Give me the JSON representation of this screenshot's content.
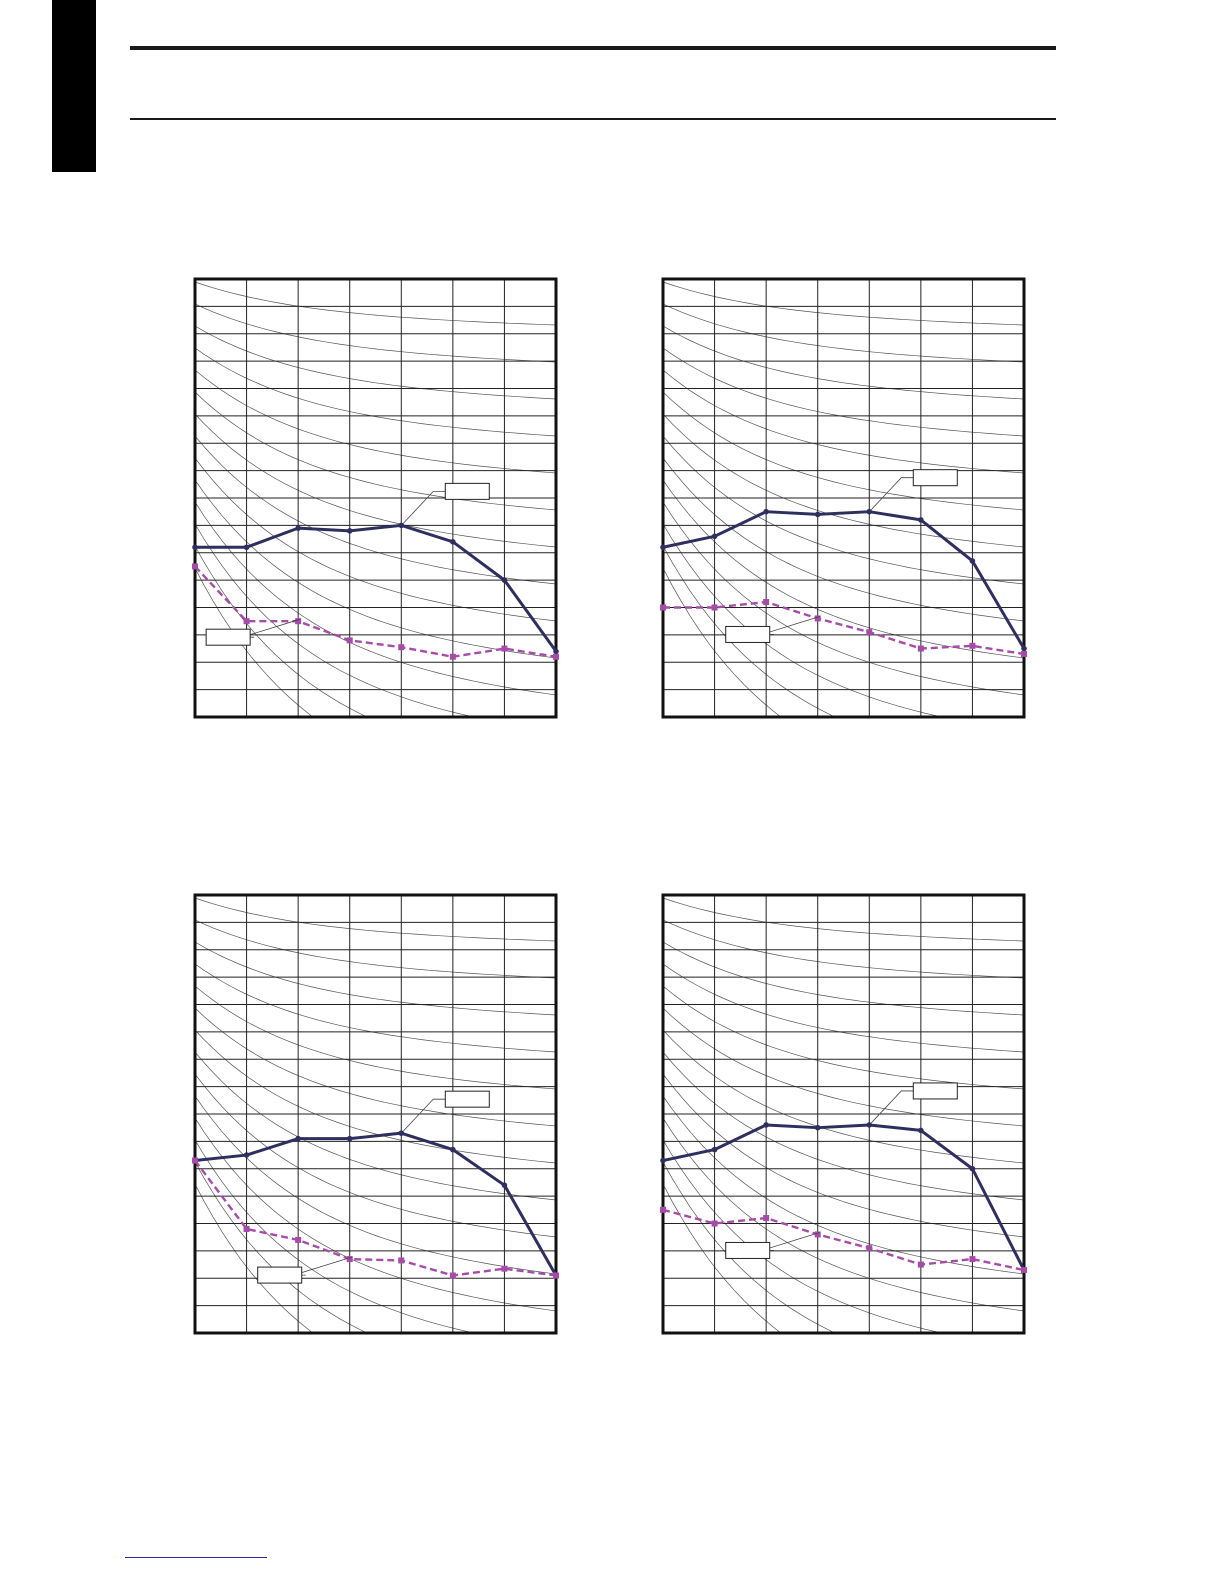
{
  "colors": {
    "series_a": "#2f2f5f",
    "series_b": "#a64ca8",
    "grid": "#222222",
    "background_curves": "#555555"
  },
  "chart_data": [
    {
      "type": "line",
      "x": [
        0,
        1,
        2,
        3,
        4,
        5,
        6,
        7
      ],
      "xlim": [
        0,
        7
      ],
      "ylim": [
        0,
        16
      ],
      "grid": true,
      "series": [
        {
          "line": "solid",
          "marker": "circle",
          "values": [
            6.2,
            6.2,
            6.9,
            6.8,
            7.0,
            6.4,
            5.0,
            2.4
          ]
        },
        {
          "line": "dashed",
          "marker": "square",
          "values": [
            5.5,
            3.5,
            3.5,
            2.8,
            2.55,
            2.2,
            2.5,
            2.2
          ]
        }
      ],
      "annotations": [
        {
          "text": "",
          "series": 0,
          "point": 4
        },
        {
          "text": "",
          "series": 1,
          "point": 2
        }
      ]
    },
    {
      "type": "line",
      "x": [
        0,
        1,
        2,
        3,
        4,
        5,
        6,
        7
      ],
      "xlim": [
        0,
        7
      ],
      "ylim": [
        0,
        16
      ],
      "grid": true,
      "series": [
        {
          "line": "solid",
          "marker": "circle",
          "values": [
            6.2,
            6.6,
            7.5,
            7.4,
            7.5,
            7.2,
            5.7,
            2.5
          ]
        },
        {
          "line": "dashed",
          "marker": "square",
          "values": [
            4.0,
            4.0,
            4.2,
            3.6,
            3.1,
            2.5,
            2.6,
            2.3
          ]
        }
      ],
      "annotations": [
        {
          "text": "",
          "series": 0,
          "point": 4
        },
        {
          "text": "",
          "series": 1,
          "point": 3
        }
      ]
    },
    {
      "type": "line",
      "x": [
        0,
        1,
        2,
        3,
        4,
        5,
        6,
        7
      ],
      "xlim": [
        0,
        7
      ],
      "ylim": [
        0,
        16
      ],
      "grid": true,
      "series": [
        {
          "line": "solid",
          "marker": "circle",
          "values": [
            6.3,
            6.5,
            7.1,
            7.1,
            7.3,
            6.7,
            5.4,
            2.1
          ]
        },
        {
          "line": "dashed",
          "marker": "square",
          "values": [
            6.3,
            3.8,
            3.4,
            2.7,
            2.65,
            2.1,
            2.35,
            2.1
          ]
        }
      ],
      "annotations": [
        {
          "text": "",
          "series": 0,
          "point": 4
        },
        {
          "text": "",
          "series": 1,
          "point": 3
        }
      ]
    },
    {
      "type": "line",
      "x": [
        0,
        1,
        2,
        3,
        4,
        5,
        6,
        7
      ],
      "xlim": [
        0,
        7
      ],
      "ylim": [
        0,
        16
      ],
      "grid": true,
      "series": [
        {
          "line": "solid",
          "marker": "circle",
          "values": [
            6.3,
            6.7,
            7.6,
            7.5,
            7.6,
            7.4,
            6.0,
            2.3
          ]
        },
        {
          "line": "dashed",
          "marker": "square",
          "values": [
            4.5,
            4.0,
            4.2,
            3.6,
            3.1,
            2.5,
            2.7,
            2.3
          ]
        }
      ],
      "annotations": [
        {
          "text": "",
          "series": 0,
          "point": 4
        },
        {
          "text": "",
          "series": 1,
          "point": 3
        }
      ]
    }
  ]
}
